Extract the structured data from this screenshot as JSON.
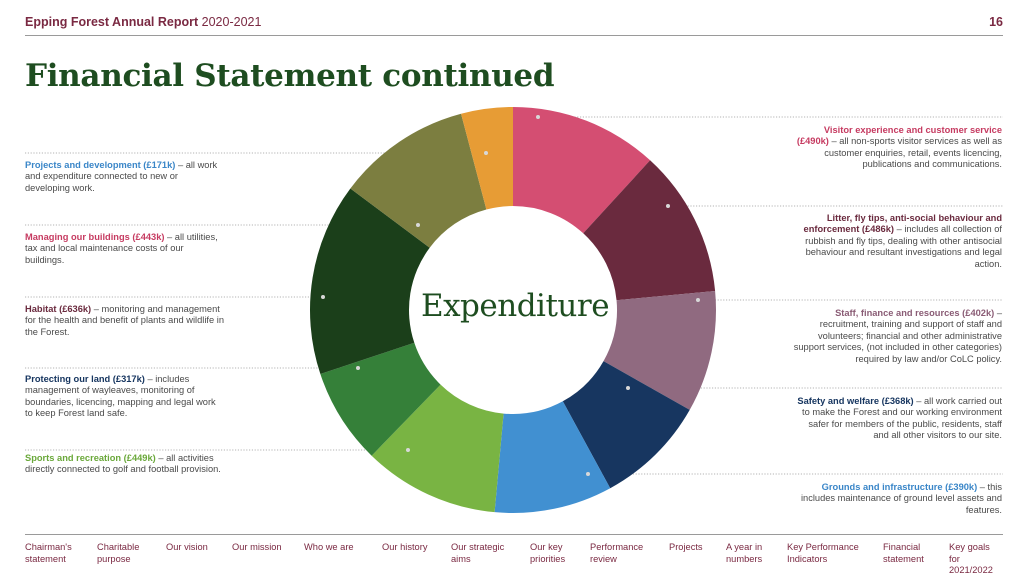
{
  "header": {
    "title_bold": "Epping Forest Annual Report",
    "title_year": "2020-2021",
    "page_number": "16"
  },
  "page_title": "Financial Statement continued",
  "colors": {
    "brand": "#7a2942",
    "title_green": "#1e4d20"
  },
  "chart_data": {
    "type": "pie",
    "variant": "donut",
    "title": "Expenditure",
    "unit": "£k",
    "slices": [
      {
        "name": "Visitor experience and customer service",
        "value": 490,
        "color": "#d44e72"
      },
      {
        "name": "Litter, fly tips, anti-social behaviour and enforcement",
        "value": 486,
        "color": "#6a2a3e"
      },
      {
        "name": "Staff, finance and resources",
        "value": 402,
        "color": "#906a80"
      },
      {
        "name": "Safety and welfare",
        "value": 368,
        "color": "#173660"
      },
      {
        "name": "Grounds and infrastructure",
        "value": 390,
        "color": "#4190d1"
      },
      {
        "name": "Sports and recreation",
        "value": 449,
        "color": "#79b443"
      },
      {
        "name": "Protecting our land",
        "value": 317,
        "color": "#358039"
      },
      {
        "name": "Habitat",
        "value": 636,
        "color": "#1b3f1a"
      },
      {
        "name": "Managing our buildings",
        "value": 443,
        "color": "#7c7e40"
      },
      {
        "name": "Projects and development",
        "value": 171,
        "color": "#e79c35"
      }
    ]
  },
  "descriptions": {
    "visitor": {
      "head": "Visitor experience and customer service (£490k)",
      "body": " – all non-sports visitor services as well as customer enquiries, retail, events licencing, publications and communications.",
      "color": "#c63b61"
    },
    "litter": {
      "head": "Litter, fly tips, anti-social behaviour and enforcement (£486k)",
      "body": " – includes all collection of rubbish and fly tips, dealing with other antisocial behaviour and resultant investigations and legal action.",
      "color": "#6a2a3e"
    },
    "staff": {
      "head": "Staff, finance and resources (£402k)",
      "body": " – recruitment, training and support of staff and volunteers; financial and other administrative support services, (not included in other categories) required by law and/or CoLC policy.",
      "color": "#8a5c75"
    },
    "safety": {
      "head": "Safety and welfare (£368k)",
      "body": " – all work carried out to make the Forest and our working environment safer for members of the public, residents, staff and all other visitors to our site.",
      "color": "#173660"
    },
    "grounds": {
      "head": "Grounds and infrastructure (£390k)",
      "body": " – this includes maintenance of ground level assets and features.",
      "color": "#3a86c8"
    },
    "projects": {
      "head": "Projects and development (£171k)",
      "body": " – all work and expenditure connected to new or developing work.",
      "color": "#3a86c8"
    },
    "buildings": {
      "head": "Managing our buildings (£443k)",
      "body": " – all utilities, tax and local maintenance costs of our buildings.",
      "color": "#c63b61"
    },
    "habitat": {
      "head": "Habitat (£636k)",
      "body": " – monitoring and management for the health and benefit of plants and wildlife in the Forest.",
      "color": "#6a2a3e"
    },
    "protecting": {
      "head": "Protecting our land (£317k)",
      "body": " – includes management of wayleaves, monitoring of boundaries, licencing, mapping and legal work to keep Forest land safe.",
      "color": "#173660"
    },
    "sports": {
      "head": "Sports and recreation (£449k)",
      "body": " – all activities directly connected to golf and football provision.",
      "color": "#6aa83a"
    }
  },
  "footer_nav": [
    {
      "line1": "Chairman's",
      "line2": "statement"
    },
    {
      "line1": "Charitable",
      "line2": "purpose"
    },
    {
      "line1": "Our vision",
      "line2": ""
    },
    {
      "line1": "Our mission",
      "line2": ""
    },
    {
      "line1": "Who we are",
      "line2": ""
    },
    {
      "line1": "Our history",
      "line2": ""
    },
    {
      "line1": "Our strategic",
      "line2": "aims"
    },
    {
      "line1": "Our key",
      "line2": "priorities"
    },
    {
      "line1": "Performance",
      "line2": "review"
    },
    {
      "line1": "Projects",
      "line2": ""
    },
    {
      "line1": "A year in",
      "line2": "numbers"
    },
    {
      "line1": "Key Performance",
      "line2": "Indicators"
    },
    {
      "line1": "Financial",
      "line2": "statement"
    },
    {
      "line1": "Key goals",
      "line2": "for 2021/2022"
    }
  ]
}
